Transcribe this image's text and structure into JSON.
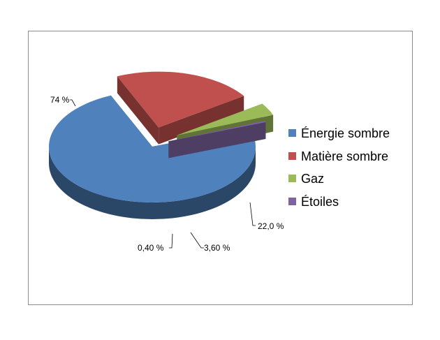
{
  "chart_data": {
    "type": "pie",
    "title": "",
    "exploded": true,
    "three_d": true,
    "legend_position": "right",
    "slices": [
      {
        "name": "Énergie sombre",
        "value": 74,
        "label": "74 %",
        "color": "#4f81bd"
      },
      {
        "name": "Matière sombre",
        "value": 22,
        "label": "22,0 %",
        "color": "#c0504d"
      },
      {
        "name": "Gaz",
        "value": 3.6,
        "label": "3,60 %",
        "color": "#9bbb59"
      },
      {
        "name": "Étoiles",
        "value": 0.4,
        "label": "0,40 %",
        "color": "#8064a2"
      }
    ]
  }
}
